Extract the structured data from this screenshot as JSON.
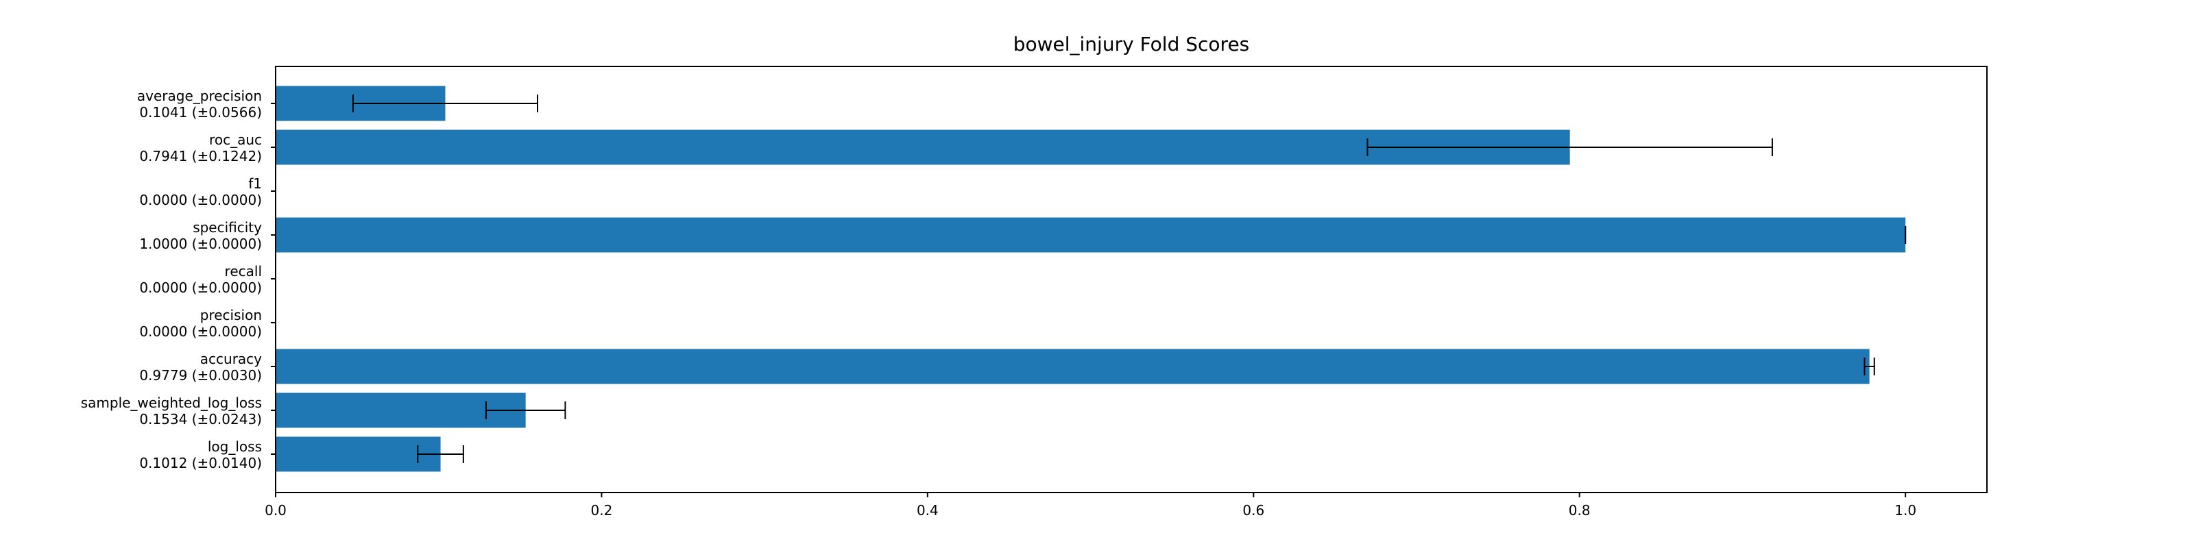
{
  "chart_data": {
    "type": "bar",
    "orientation": "horizontal",
    "title": "bowel_injury Fold Scores",
    "xlabel": "",
    "ylabel": "",
    "xlim": [
      0.0,
      1.05
    ],
    "xticks": [
      "0.0",
      "0.2",
      "0.4",
      "0.6",
      "0.8",
      "1.0"
    ],
    "grid": false,
    "color": "#1f77b4",
    "categories": [
      {
        "name": "log_loss",
        "score_label": "0.1012 (±0.0140)",
        "value": 0.1012,
        "error": 0.014
      },
      {
        "name": "sample_weighted_log_loss",
        "score_label": "0.1534 (±0.0243)",
        "value": 0.1534,
        "error": 0.0243
      },
      {
        "name": "accuracy",
        "score_label": "0.9779 (±0.0030)",
        "value": 0.9779,
        "error": 0.003
      },
      {
        "name": "precision",
        "score_label": "0.0000 (±0.0000)",
        "value": 0.0,
        "error": 0.0
      },
      {
        "name": "recall",
        "score_label": "0.0000 (±0.0000)",
        "value": 0.0,
        "error": 0.0
      },
      {
        "name": "specificity",
        "score_label": "1.0000 (±0.0000)",
        "value": 1.0,
        "error": 0.0
      },
      {
        "name": "f1",
        "score_label": "0.0000 (±0.0000)",
        "value": 0.0,
        "error": 0.0
      },
      {
        "name": "roc_auc",
        "score_label": "0.7941 (±0.1242)",
        "value": 0.7941,
        "error": 0.1242
      },
      {
        "name": "average_precision",
        "score_label": "0.1041 (±0.0566)",
        "value": 0.1041,
        "error": 0.0566
      }
    ]
  }
}
